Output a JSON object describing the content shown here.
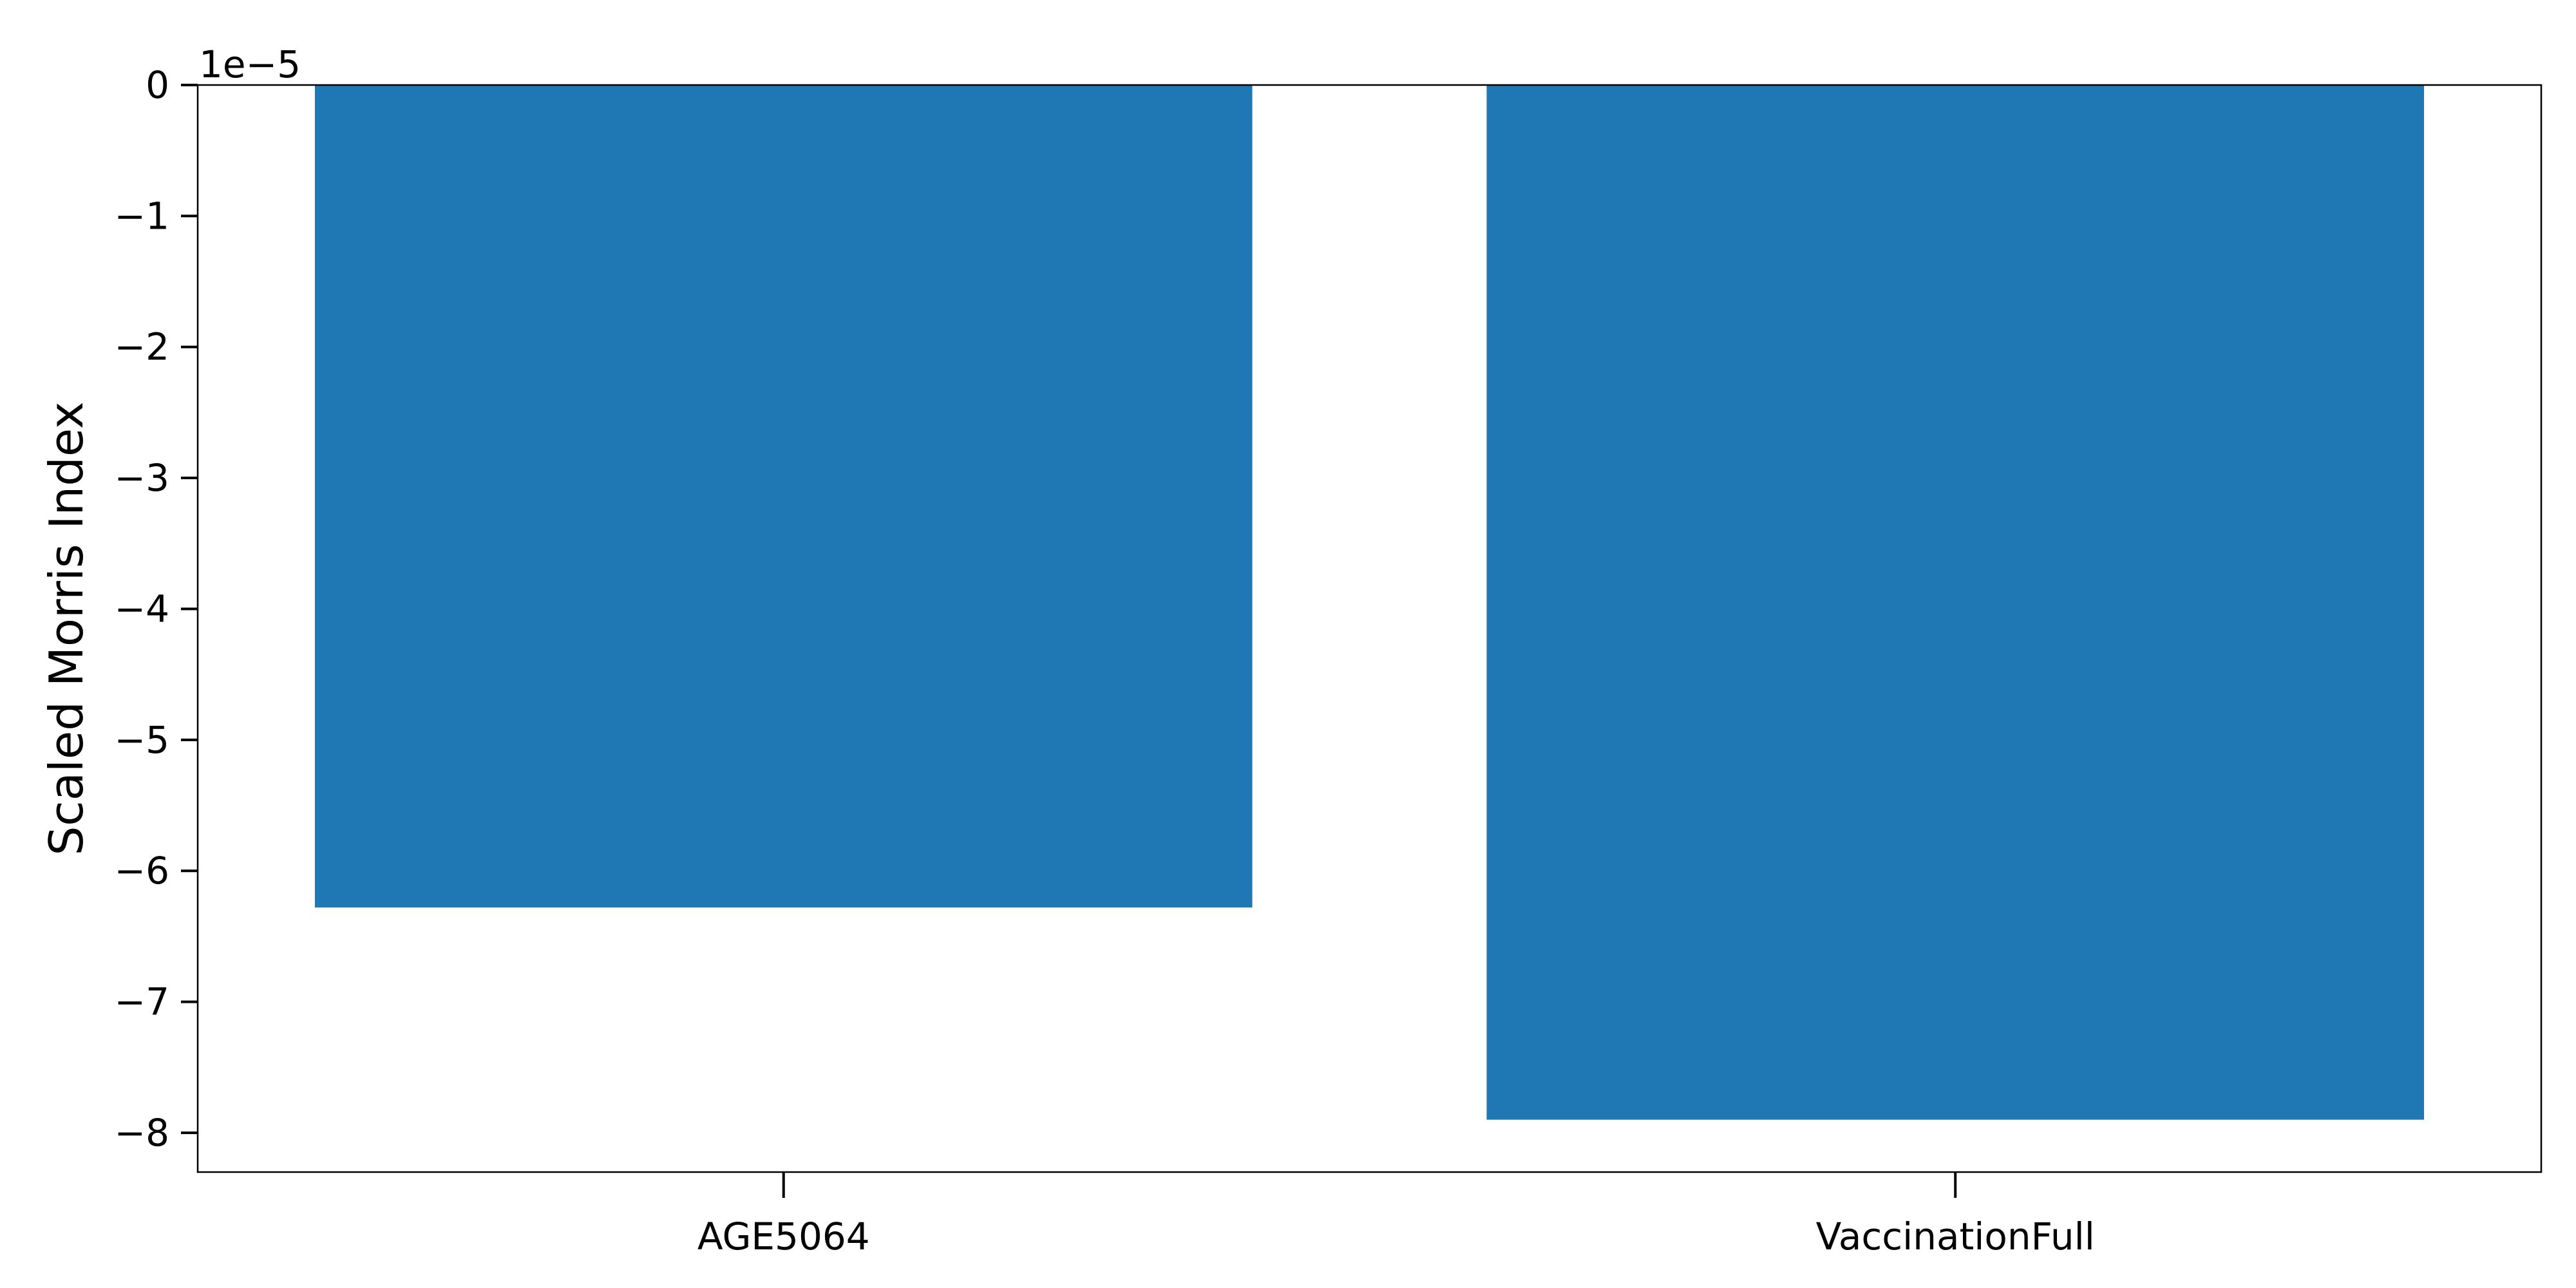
{
  "chart_data": {
    "type": "bar",
    "categories": [
      "AGE5064",
      "VaccinationFull"
    ],
    "values": [
      -6.28e-05,
      -7.9e-05
    ],
    "ylabel": "Scaled Morris Index",
    "xlabel": "",
    "ylim": [
      -8.3e-05,
      0
    ],
    "y_ticks": [
      0,
      -1,
      -2,
      -3,
      -4,
      -5,
      -6,
      -7,
      -8
    ],
    "y_tick_labels": [
      "0",
      "−1",
      "−2",
      "−3",
      "−4",
      "−5",
      "−6",
      "−7",
      "−8"
    ],
    "y_scale_factor": 1e-05,
    "y_offset_text": "1e−5",
    "grid": false,
    "bar_color": "#1f77b4",
    "axis_color": "#000000"
  }
}
